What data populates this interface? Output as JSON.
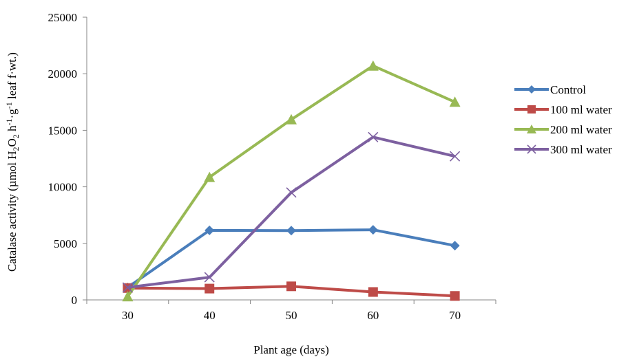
{
  "chart_data": {
    "type": "line",
    "title": "",
    "xlabel": "Plant age (days)",
    "ylabel": {
      "parts": [
        {
          "text": "Catalase activity (µmol H",
          "shift": "base"
        },
        {
          "text": "2",
          "shift": "sub"
        },
        {
          "text": "O",
          "shift": "base"
        },
        {
          "text": "2",
          "shift": "sub"
        },
        {
          "text": " h",
          "shift": "base"
        },
        {
          "text": "-1",
          "shift": "sup"
        },
        {
          "text": "·g",
          "shift": "base"
        },
        {
          "text": "-1",
          "shift": "sup"
        },
        {
          "text": " leaf f·wt.)",
          "shift": "base"
        }
      ]
    },
    "categories": [
      "30",
      "40",
      "50",
      "60",
      "70"
    ],
    "x": [
      30,
      40,
      50,
      60,
      70
    ],
    "ylim": [
      0,
      25000
    ],
    "yticks": [
      "0",
      "5000",
      "10000",
      "15000",
      "20000",
      "25000"
    ],
    "ytick_values": [
      0,
      5000,
      10000,
      15000,
      20000,
      25000
    ],
    "grid": false,
    "legend_position": "right",
    "series": [
      {
        "name": "Control",
        "color": "#4a7ebb",
        "marker": "diamond",
        "values": [
          1100,
          6150,
          6130,
          6200,
          4800
        ]
      },
      {
        "name": "100 ml water",
        "color": "#be4b48",
        "marker": "square",
        "values": [
          1050,
          1000,
          1200,
          700,
          350
        ]
      },
      {
        "name": "200 ml water",
        "color": "#98b954",
        "marker": "triangle",
        "values": [
          300,
          10850,
          15950,
          20700,
          17500
        ]
      },
      {
        "name": "300 ml water",
        "color": "#7d60a0",
        "marker": "x",
        "values": [
          1100,
          2000,
          9500,
          14400,
          12700
        ]
      }
    ]
  }
}
